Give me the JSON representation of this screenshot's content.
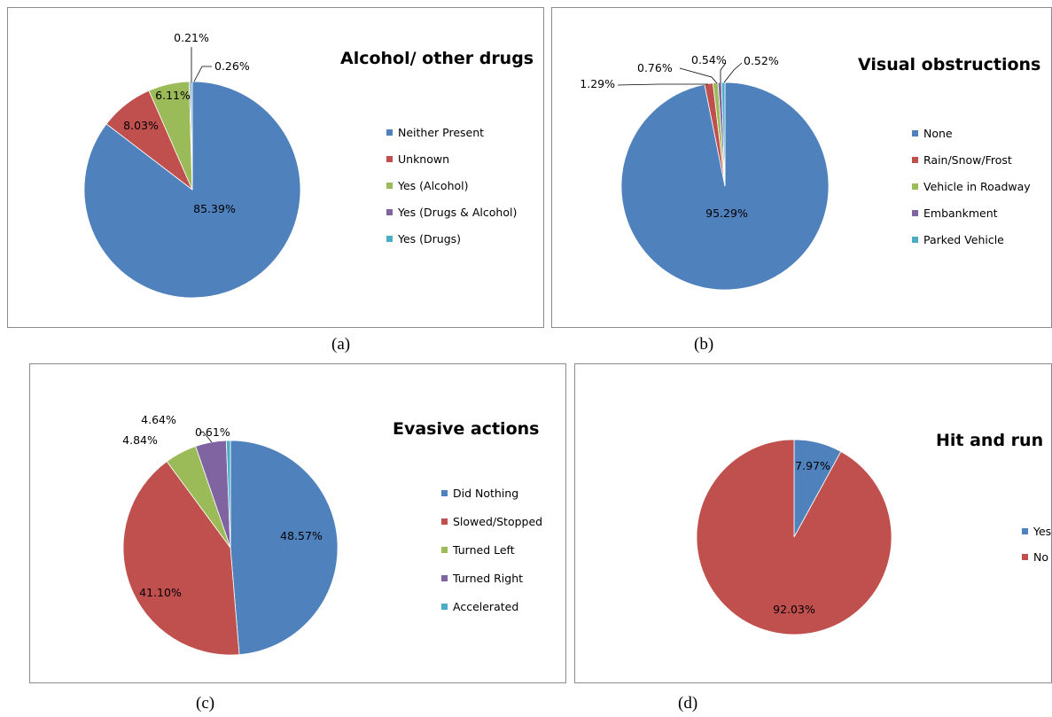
{
  "colors": {
    "blue": "#4f81bd",
    "red": "#c0504d",
    "green": "#9bbb59",
    "purple": "#8064a2",
    "cyan": "#4bacc6"
  },
  "chart_data": [
    {
      "type": "pie",
      "caption": "(a)",
      "title": "Alcohol/ other drugs",
      "legend_position": "right",
      "slices": [
        {
          "label": "Neither Present",
          "value": 85.39,
          "display": "85.39%",
          "color": "#4f81bd"
        },
        {
          "label": "Unknown",
          "value": 8.03,
          "display": "8.03%",
          "color": "#c0504d"
        },
        {
          "label": "Yes (Alcohol)",
          "value": 6.11,
          "display": "6.11%",
          "color": "#9bbb59"
        },
        {
          "label": "Yes (Drugs & Alcohol)",
          "value": 0.21,
          "display": "0.21%",
          "color": "#8064a2"
        },
        {
          "label": "Yes (Drugs)",
          "value": 0.26,
          "display": "0.26%",
          "color": "#4bacc6"
        }
      ]
    },
    {
      "type": "pie",
      "caption": "(b)",
      "title": "Visual obstructions",
      "legend_position": "right",
      "slices": [
        {
          "label": "None",
          "value": 95.29,
          "display": "95.29%",
          "color": "#4f81bd"
        },
        {
          "label": "Rain/Snow/Frost",
          "value": 1.29,
          "display": "1.29%",
          "color": "#c0504d"
        },
        {
          "label": "Vehicle in Roadway",
          "value": 0.76,
          "display": "0.76%",
          "color": "#9bbb59"
        },
        {
          "label": "Embankment",
          "value": 0.54,
          "display": "0.54%",
          "color": "#8064a2"
        },
        {
          "label": "Parked Vehicle",
          "value": 0.52,
          "display": "0.52%",
          "color": "#4bacc6"
        }
      ]
    },
    {
      "type": "pie",
      "caption": "(c)",
      "title": "Evasive actions",
      "legend_position": "right",
      "slices": [
        {
          "label": "Did Nothing",
          "value": 48.57,
          "display": "48.57%",
          "color": "#4f81bd"
        },
        {
          "label": "Slowed/Stopped",
          "value": 41.1,
          "display": "41.10%",
          "color": "#c0504d"
        },
        {
          "label": "Turned Left",
          "value": 4.84,
          "display": "4.84%",
          "color": "#9bbb59"
        },
        {
          "label": "Turned Right",
          "value": 4.64,
          "display": "4.64%",
          "color": "#8064a2"
        },
        {
          "label": "Accelerated",
          "value": 0.61,
          "display": "0.61%",
          "color": "#4bacc6"
        }
      ]
    },
    {
      "type": "pie",
      "caption": "(d)",
      "title": "Hit and run",
      "legend_position": "right",
      "slices": [
        {
          "label": "Yes",
          "value": 7.97,
          "display": "7.97%",
          "color": "#4f81bd"
        },
        {
          "label": "No",
          "value": 92.03,
          "display": "92.03%",
          "color": "#c0504d"
        }
      ]
    }
  ]
}
